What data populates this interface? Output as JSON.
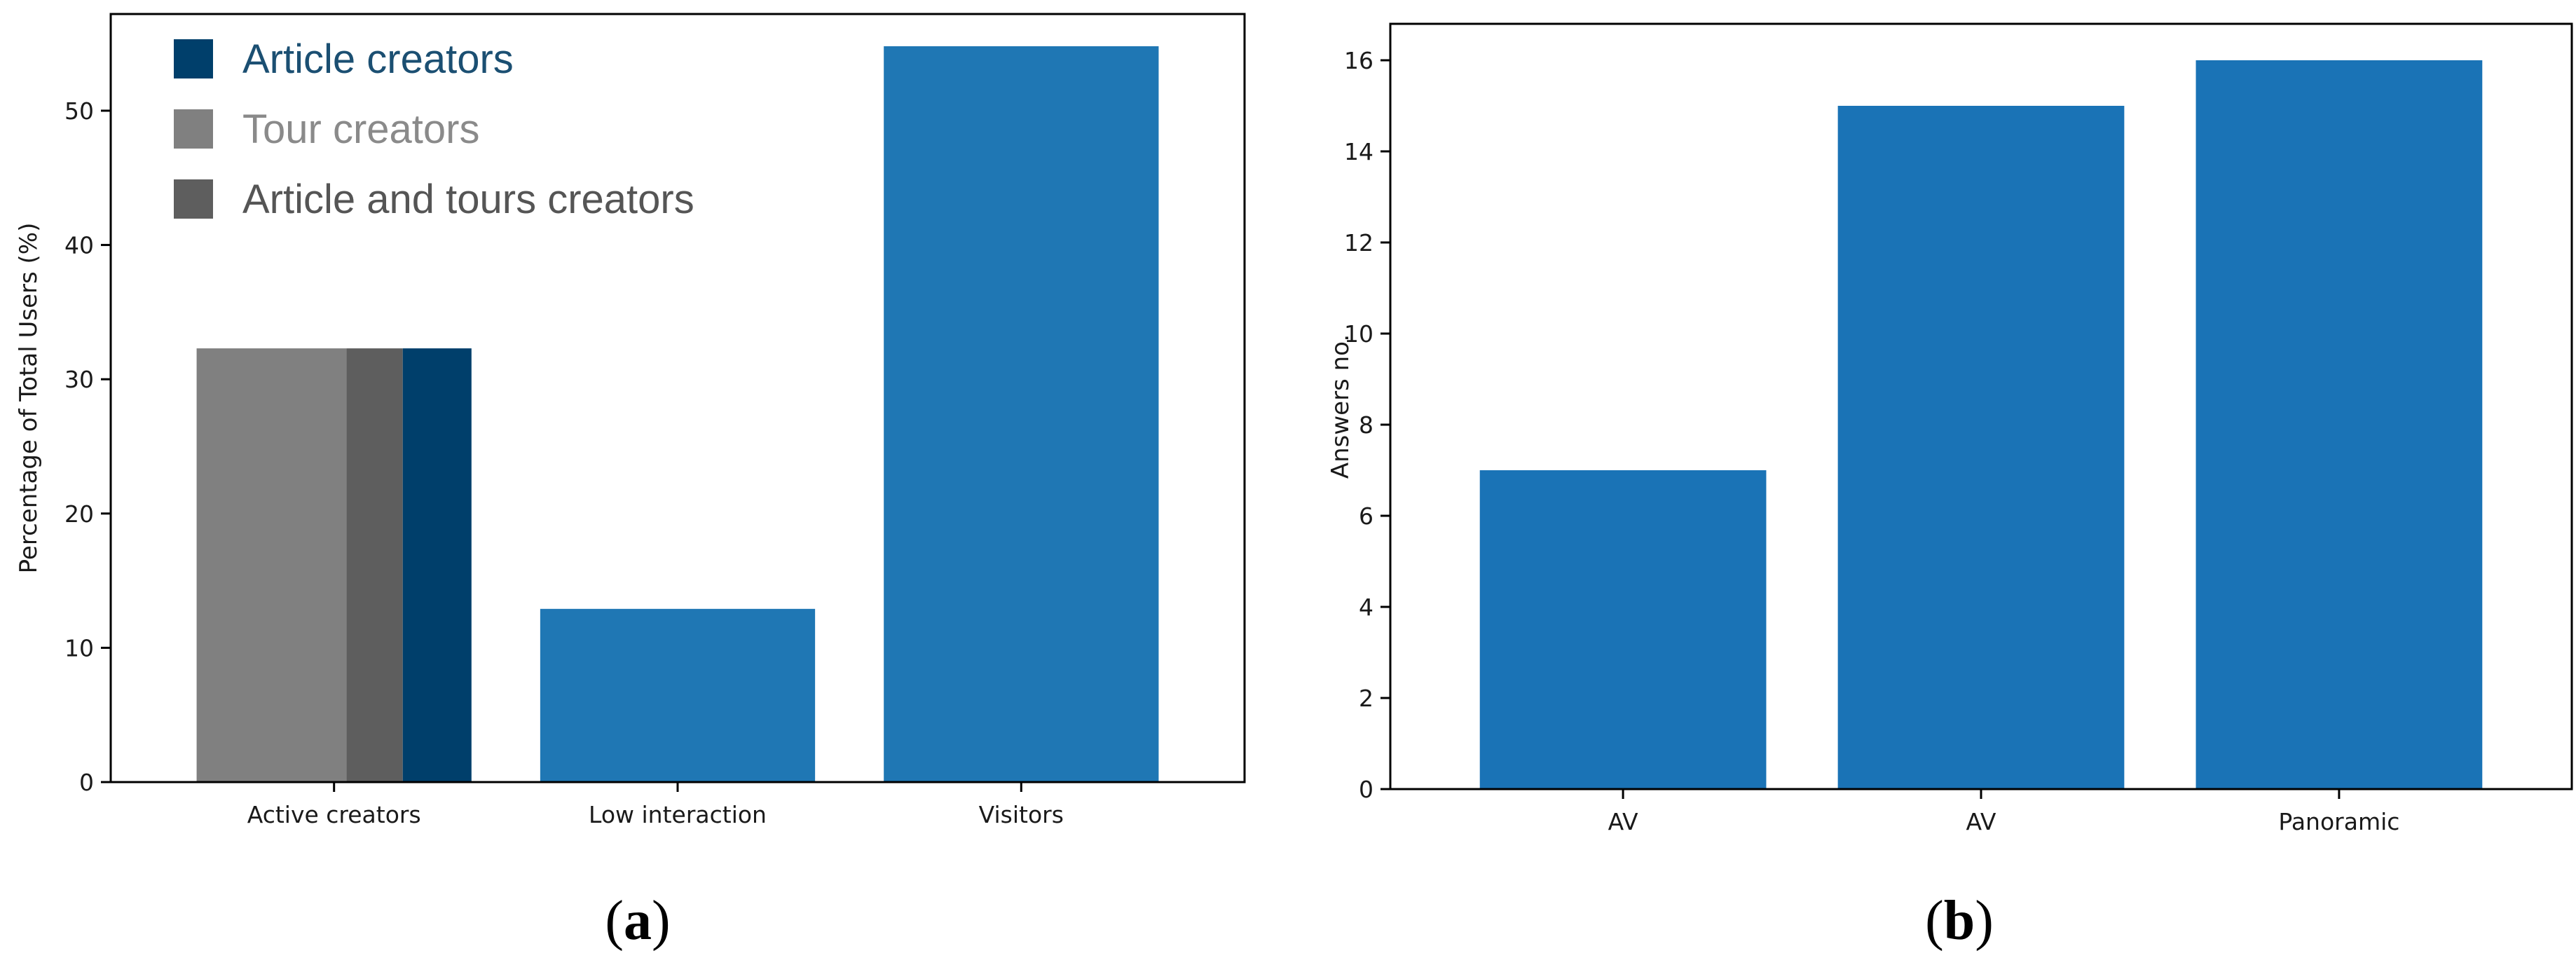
{
  "chart_data": [
    {
      "type": "bar",
      "panel": "a",
      "categories": [
        "Active creators",
        "Low interaction",
        "Visitors"
      ],
      "series": [
        {
          "name": "Tour creators",
          "color": "#808080",
          "values": [
            32.3,
            null,
            null
          ]
        },
        {
          "name": "Article and tours creators",
          "color": "#5e5e5e",
          "values": [
            32.3,
            null,
            null
          ]
        },
        {
          "name": "Article creators",
          "color": "#003f6b",
          "values": [
            32.3,
            null,
            null
          ]
        },
        {
          "color": "#1f77b4",
          "values": [
            null,
            12.9,
            54.8
          ]
        }
      ],
      "legend": [
        "Article creators",
        "Tour creators",
        "Article and tours creators"
      ],
      "legend_colors": [
        "#003f6b",
        "#808080",
        "#5e5e5e"
      ],
      "legend_text_colors": [
        "#1b4f72",
        "#8a8a8a",
        "#555555"
      ],
      "legend_position": "top-left",
      "title": "",
      "xlabel": "",
      "ylabel": "Percentage of Total Users (%)",
      "ylim": [
        0,
        57.2
      ],
      "yticks": [
        0,
        10,
        20,
        30,
        40,
        50
      ],
      "grid": false
    },
    {
      "type": "bar",
      "panel": "b",
      "categories": [
        "AV",
        "AV",
        "Panoramic"
      ],
      "values": [
        7,
        15,
        16
      ],
      "color": "#1a73b6",
      "title": "",
      "xlabel": "",
      "ylabel": "Answers no.",
      "ylim": [
        0,
        16.8
      ],
      "yticks": [
        0,
        2,
        4,
        6,
        8,
        10,
        12,
        14,
        16
      ],
      "grid": false
    }
  ],
  "panel_labels": {
    "a": {
      "open": "(",
      "letter": "a",
      "close": ")"
    },
    "b": {
      "open": "(",
      "letter": "b",
      "close": ")"
    }
  }
}
